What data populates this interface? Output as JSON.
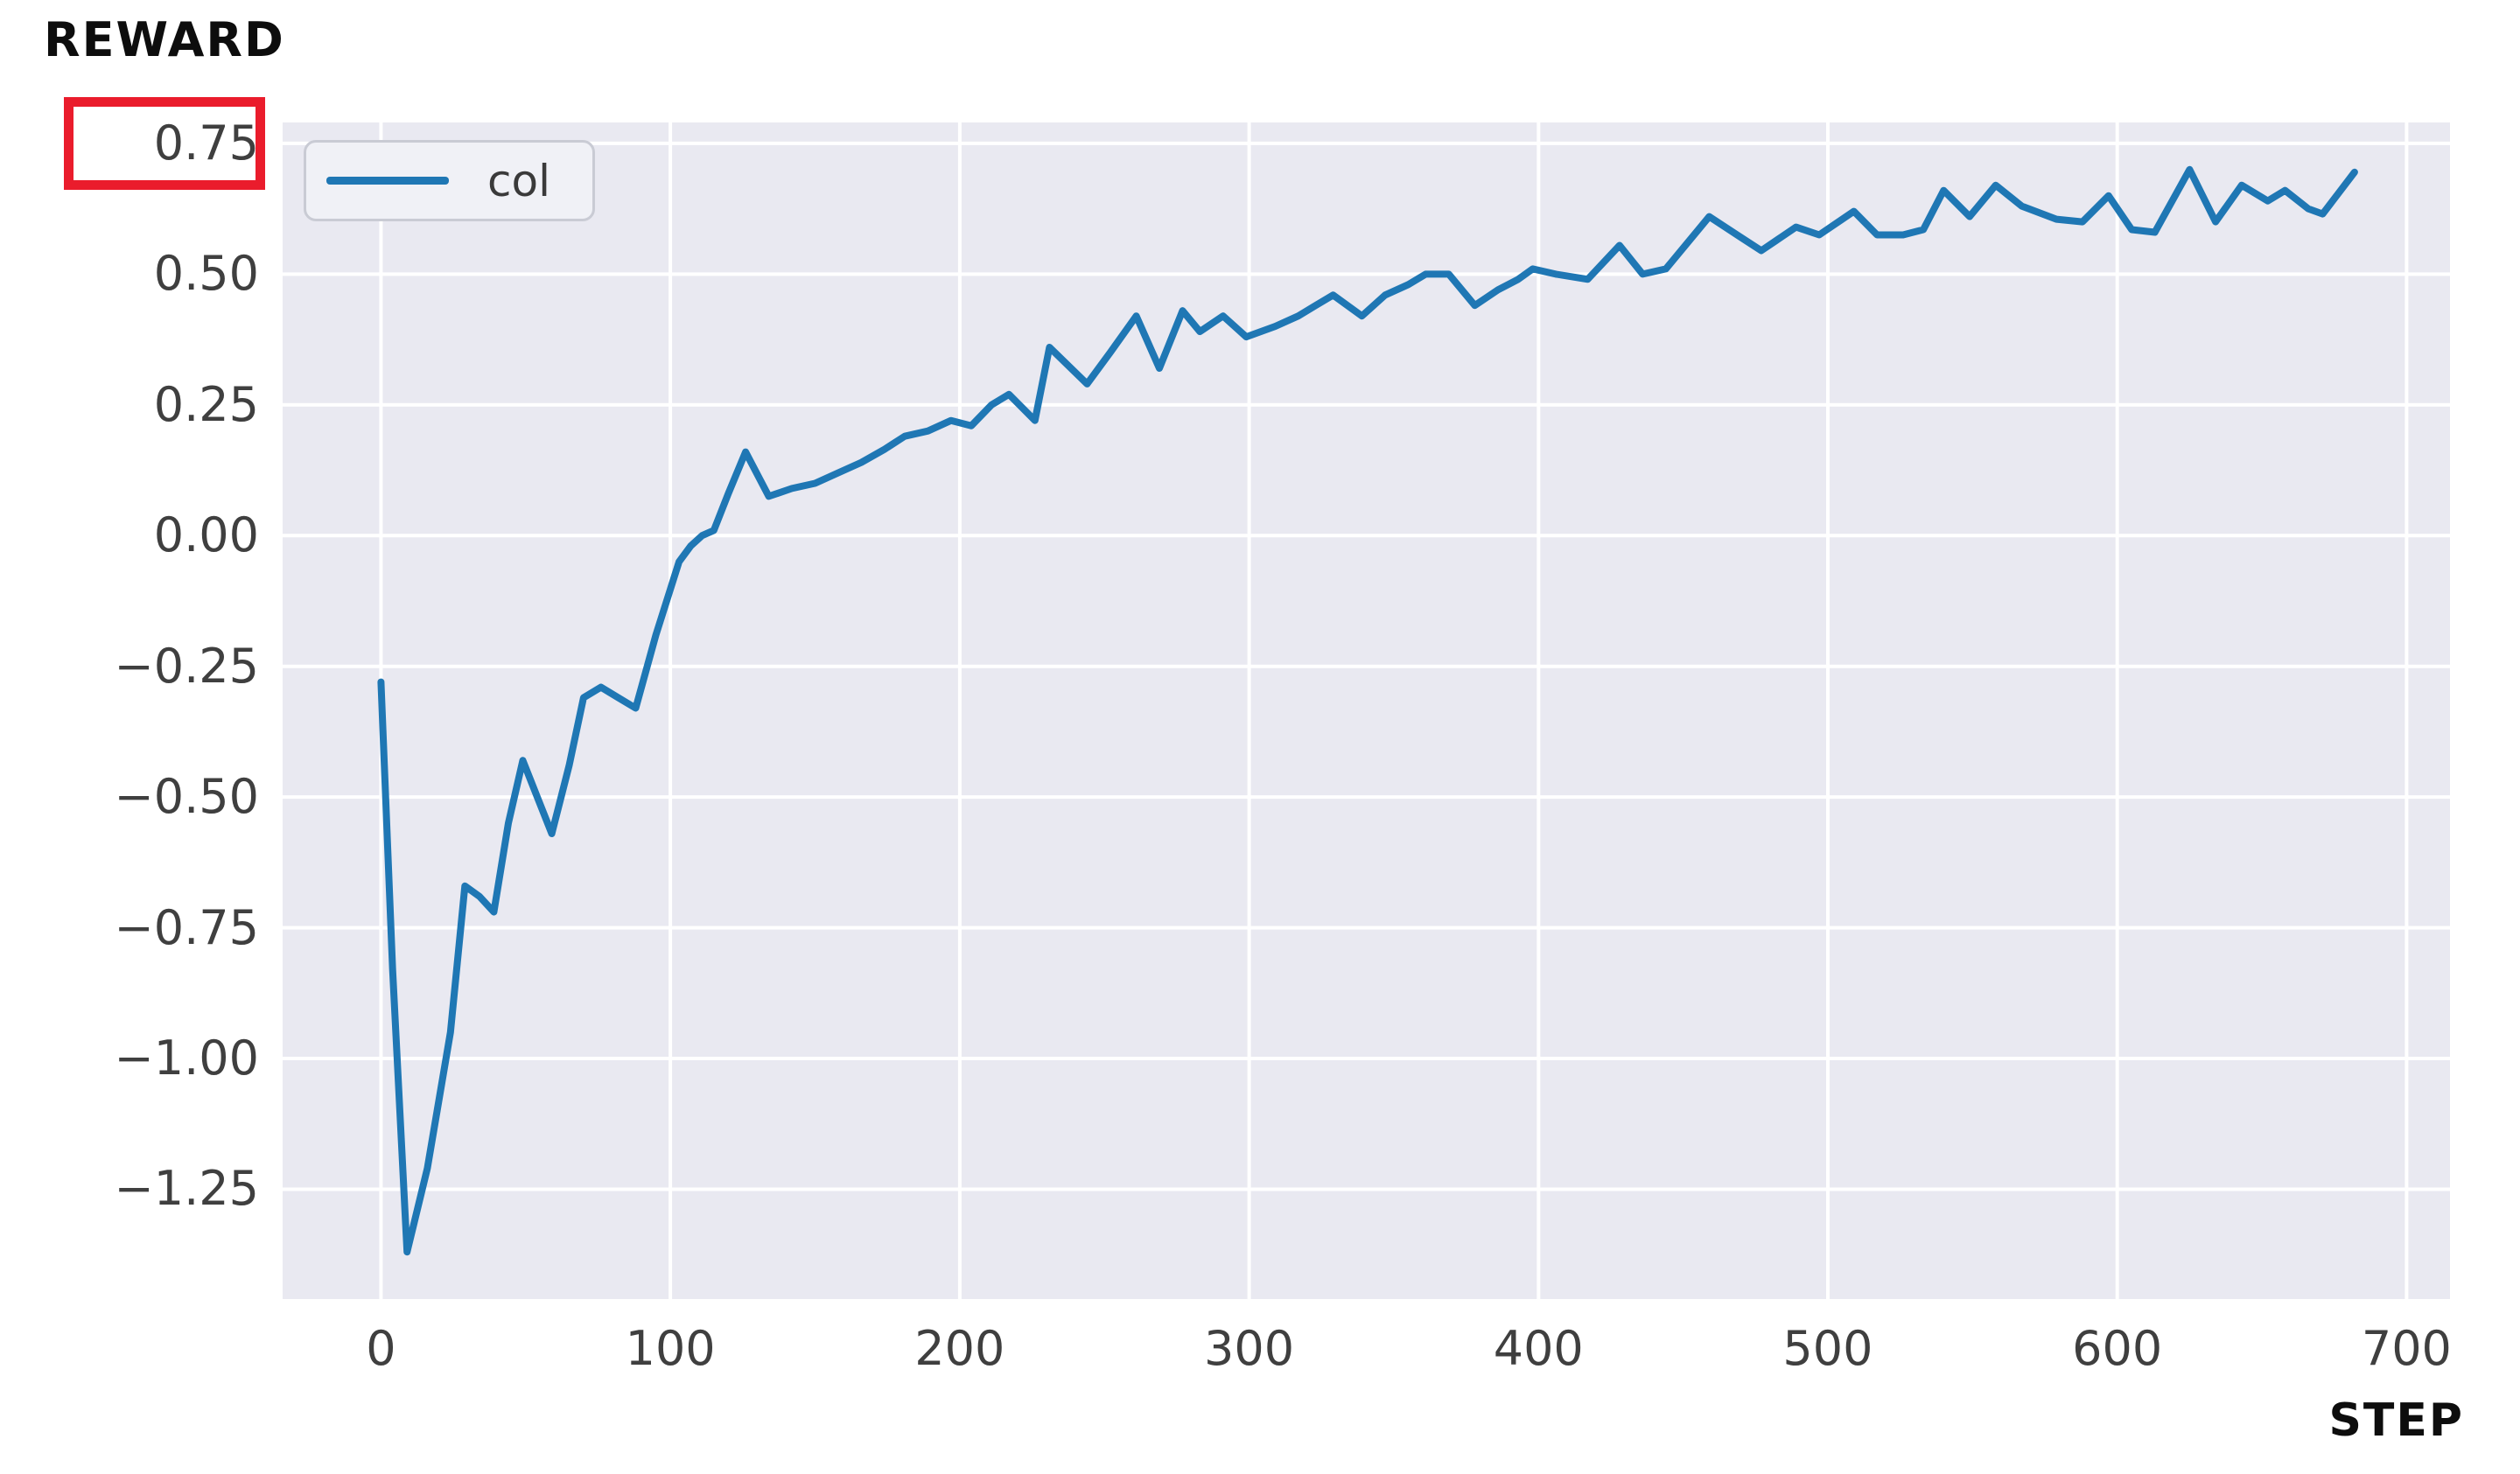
{
  "chart_data": {
    "type": "line",
    "title": "REWARD",
    "xlabel": "STEP",
    "ylabel": "",
    "grid": true,
    "legend_position": "upper-left",
    "plot_background_color": "#e9e9f1",
    "grid_color": "#ffffff",
    "tick_text_color": "#3f3f3f",
    "title_text_color": "#0d0d0d",
    "highlight_color": "#ea1c2c",
    "xlim": [
      -34,
      715
    ],
    "ylim": [
      -1.46,
      0.79
    ],
    "x_tick_values": [
      0,
      100,
      200,
      300,
      400,
      500,
      600,
      700
    ],
    "x_tick_labels": [
      "0",
      "100",
      "200",
      "300",
      "400",
      "500",
      "600",
      "700"
    ],
    "y_tick_values": [
      0.75,
      0.5,
      0.25,
      0,
      -0.25,
      -0.5,
      -0.75,
      -1.0,
      -1.25
    ],
    "y_tick_labels": [
      "0.75",
      "0.50",
      "0.25",
      "0.00",
      "−0.25",
      "−0.50",
      "−0.75",
      "−1.00",
      "−1.25"
    ],
    "highlighted_y_tick": "0.75",
    "legend": [
      {
        "label": "col",
        "color": "#1f77b4"
      }
    ],
    "series": [
      {
        "name": "col",
        "color": "#1f77b4",
        "points": [
          [
            0,
            -0.28
          ],
          [
            4,
            -0.83
          ],
          [
            9,
            -1.37
          ],
          [
            16,
            -1.21
          ],
          [
            24,
            -0.95
          ],
          [
            29,
            -0.67
          ],
          [
            34,
            -0.69
          ],
          [
            39,
            -0.72
          ],
          [
            44,
            -0.55
          ],
          [
            49,
            -0.43
          ],
          [
            54,
            -0.5
          ],
          [
            59,
            -0.57
          ],
          [
            65,
            -0.44
          ],
          [
            70,
            -0.31
          ],
          [
            76,
            -0.29
          ],
          [
            82,
            -0.31
          ],
          [
            88,
            -0.33
          ],
          [
            95,
            -0.19
          ],
          [
            103,
            -0.05
          ],
          [
            107,
            -0.02
          ],
          [
            111,
            0.0
          ],
          [
            115,
            0.01
          ],
          [
            120,
            0.08
          ],
          [
            126,
            0.16
          ],
          [
            134,
            0.075
          ],
          [
            142,
            0.09
          ],
          [
            150,
            0.1
          ],
          [
            158,
            0.12
          ],
          [
            166,
            0.14
          ],
          [
            174,
            0.165
          ],
          [
            181,
            0.19
          ],
          [
            189,
            0.2
          ],
          [
            197,
            0.22
          ],
          [
            204,
            0.21
          ],
          [
            211,
            0.25
          ],
          [
            217,
            0.27
          ],
          [
            226,
            0.22
          ],
          [
            231,
            0.36
          ],
          [
            244,
            0.29
          ],
          [
            252,
            0.35
          ],
          [
            261,
            0.42
          ],
          [
            269,
            0.32
          ],
          [
            277,
            0.43
          ],
          [
            283,
            0.39
          ],
          [
            291,
            0.42
          ],
          [
            299,
            0.38
          ],
          [
            309,
            0.4
          ],
          [
            317,
            0.42
          ],
          [
            323,
            0.44
          ],
          [
            329,
            0.46
          ],
          [
            339,
            0.42
          ],
          [
            347,
            0.46
          ],
          [
            355,
            0.48
          ],
          [
            361,
            0.5
          ],
          [
            369,
            0.5
          ],
          [
            378,
            0.44
          ],
          [
            386,
            0.47
          ],
          [
            393,
            0.49
          ],
          [
            398,
            0.51
          ],
          [
            406,
            0.5
          ],
          [
            417,
            0.49
          ],
          [
            428,
            0.555
          ],
          [
            436,
            0.5
          ],
          [
            444,
            0.51
          ],
          [
            459,
            0.61
          ],
          [
            470,
            0.57
          ],
          [
            477,
            0.545
          ],
          [
            489,
            0.59
          ],
          [
            497,
            0.575
          ],
          [
            509,
            0.62
          ],
          [
            517,
            0.575
          ],
          [
            526,
            0.575
          ],
          [
            533,
            0.585
          ],
          [
            540,
            0.66
          ],
          [
            549,
            0.61
          ],
          [
            558,
            0.67
          ],
          [
            567,
            0.63
          ],
          [
            579,
            0.605
          ],
          [
            588,
            0.6
          ],
          [
            597,
            0.65
          ],
          [
            605,
            0.585
          ],
          [
            613,
            0.58
          ],
          [
            625,
            0.7
          ],
          [
            634,
            0.6
          ],
          [
            643,
            0.67
          ],
          [
            652,
            0.64
          ],
          [
            658,
            0.66
          ],
          [
            666,
            0.625
          ],
          [
            671,
            0.615
          ],
          [
            682,
            0.695
          ]
        ]
      }
    ]
  }
}
